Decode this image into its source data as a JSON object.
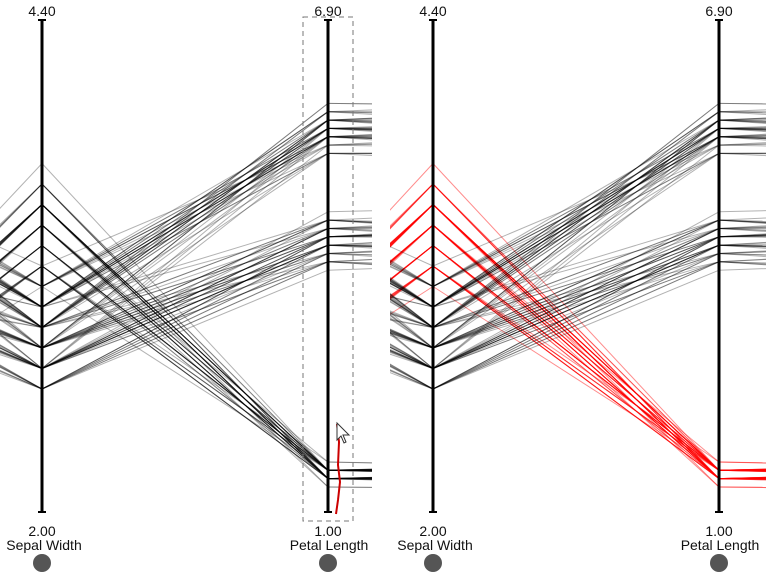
{
  "chart_data": [
    {
      "type": "parallel-coordinates",
      "panel": "left",
      "state": "brushing",
      "axes": [
        {
          "name": "Sepal Width",
          "max_label": "4.40",
          "min_label": "2.00",
          "range": [
            2.0,
            4.4
          ]
        },
        {
          "name": "Petal Length",
          "max_label": "6.90",
          "min_label": "1.00",
          "range": [
            1.0,
            6.9
          ]
        }
      ],
      "brush": {
        "axis": "Petal Length",
        "range": [
          1.0,
          2.0
        ]
      },
      "colors": {
        "line": "#000000",
        "axis": "#000000",
        "brush_stroke": "#cc0000",
        "handle": "#555555"
      }
    },
    {
      "type": "parallel-coordinates",
      "panel": "right",
      "state": "brushed",
      "axes": [
        {
          "name": "Sepal Width",
          "max_label": "4.40",
          "min_label": "2.00",
          "range": [
            2.0,
            4.4
          ]
        },
        {
          "name": "Petal Length",
          "max_label": "6.90",
          "min_label": "1.00",
          "range": [
            1.0,
            6.9
          ]
        }
      ],
      "highlight": {
        "axis": "Petal Length",
        "range": [
          1.0,
          2.0
        ],
        "color": "#ff0000"
      },
      "colors": {
        "line": "#000000",
        "highlight": "#ff0000",
        "axis": "#000000",
        "handle": "#555555"
      }
    }
  ],
  "labels": {
    "left_axis1_max": "4.40",
    "left_axis1_min": "2.00",
    "left_axis1_name": "Sepal Width",
    "left_axis2_max": "6.90",
    "left_axis2_min": "1.00",
    "left_axis2_name": "Petal Length",
    "right_axis1_max": "4.40",
    "right_axis1_min": "2.00",
    "right_axis1_name": "Sepal Width",
    "right_axis2_max": "6.90",
    "right_axis2_min": "1.00",
    "right_axis2_name": "Petal Length"
  },
  "icons": {
    "cursor": "mouse-pointer-icon",
    "handle": "axis-handle-icon"
  }
}
